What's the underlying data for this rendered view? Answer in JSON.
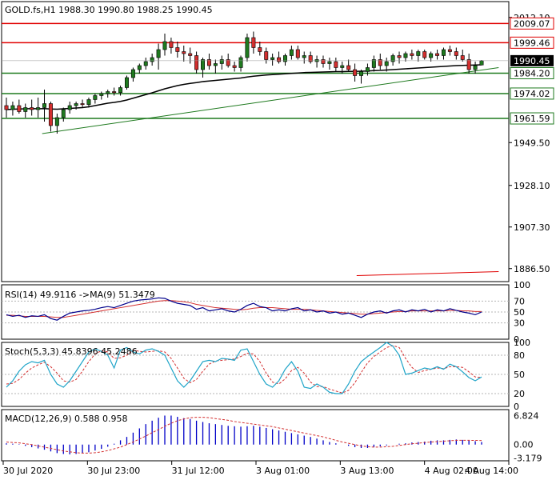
{
  "colors": {
    "frame": "#000000",
    "grid": "#b4b4b4",
    "bull": "#1f7a1f",
    "bear": "#d32f2f",
    "support_line": "#1f7a1f",
    "resistance_line": "#e00000",
    "ma_line": "#000000",
    "rsi_line": "#00008b",
    "rsi_ma": "#d32f2f",
    "stoch_main": "#1fa4c8",
    "stoch_signal": "#d32f2f",
    "macd_hist": "#0000c8",
    "macd_signal": "#d32f2f",
    "price_tag_bg": "#000000",
    "price_tag_text": "#ffffff",
    "label_bg": "#ffffff"
  },
  "chart_data": {
    "type": "candlestick",
    "header_text": "GOLD.fs,H1  1988.30 1990.80 1988.25 1990.45",
    "timeframe": "H1",
    "ohlc_last": {
      "open": 1988.3,
      "high": 1990.8,
      "low": 1988.25,
      "close": 1990.45
    },
    "current_price": "1990.45",
    "ylim": [
      1880.0,
      2020.0
    ],
    "y_ticks": [
      "2012.10",
      "1949.50",
      "1928.10",
      "1907.30",
      "1886.50"
    ],
    "x_tick_labels": [
      "30 Jul 2020",
      "30 Jul 23:00",
      "31 Jul 12:00",
      "3 Aug 01:00",
      "3 Aug 13:00",
      "4 Aug 02:00",
      "4 Aug 14:00"
    ],
    "horizontal_levels": [
      {
        "label": "2009.07",
        "value": 2009.07,
        "kind": "resistance"
      },
      {
        "label": "1999.46",
        "value": 1999.46,
        "kind": "resistance"
      },
      {
        "label": "1984.20",
        "value": 1984.2,
        "kind": "support"
      },
      {
        "label": "1974.02",
        "value": 1974.02,
        "kind": "support"
      },
      {
        "label": "1961.59",
        "value": 1961.59,
        "kind": "support"
      }
    ],
    "trendlines": [
      {
        "kind": "support",
        "from": [
          8,
          1954.0
        ],
        "to": [
          98,
          1987.0
        ]
      },
      {
        "kind": "resistance",
        "from": [
          70,
          1883.0
        ],
        "to": [
          98,
          1885.0
        ]
      }
    ],
    "candles": [
      {
        "o": 1968.0,
        "h": 1972.0,
        "l": 1962.0,
        "c": 1966.0
      },
      {
        "o": 1966.0,
        "h": 1970.0,
        "l": 1963.0,
        "c": 1968.0
      },
      {
        "o": 1968.0,
        "h": 1971.0,
        "l": 1964.0,
        "c": 1965.0
      },
      {
        "o": 1965.0,
        "h": 1969.0,
        "l": 1962.0,
        "c": 1967.0
      },
      {
        "o": 1967.0,
        "h": 1971.0,
        "l": 1963.0,
        "c": 1966.0
      },
      {
        "o": 1966.0,
        "h": 1972.0,
        "l": 1962.0,
        "c": 1967.0
      },
      {
        "o": 1967.0,
        "h": 1976.0,
        "l": 1960.0,
        "c": 1969.0
      },
      {
        "o": 1969.0,
        "h": 1970.0,
        "l": 1955.0,
        "c": 1958.0
      },
      {
        "o": 1958.0,
        "h": 1964.0,
        "l": 1954.0,
        "c": 1962.0
      },
      {
        "o": 1962.0,
        "h": 1967.0,
        "l": 1960.0,
        "c": 1966.0
      },
      {
        "o": 1966.0,
        "h": 1970.0,
        "l": 1964.0,
        "c": 1968.0
      },
      {
        "o": 1968.0,
        "h": 1970.0,
        "l": 1966.0,
        "c": 1969.0
      },
      {
        "o": 1969.0,
        "h": 1971.0,
        "l": 1967.0,
        "c": 1968.5
      },
      {
        "o": 1968.5,
        "h": 1972.0,
        "l": 1967.0,
        "c": 1971.0
      },
      {
        "o": 1971.0,
        "h": 1974.0,
        "l": 1969.0,
        "c": 1973.0
      },
      {
        "o": 1973.0,
        "h": 1975.0,
        "l": 1971.0,
        "c": 1974.0
      },
      {
        "o": 1974.0,
        "h": 1976.0,
        "l": 1972.0,
        "c": 1975.0
      },
      {
        "o": 1975.0,
        "h": 1977.0,
        "l": 1973.0,
        "c": 1974.5
      },
      {
        "o": 1974.5,
        "h": 1978.0,
        "l": 1973.0,
        "c": 1977.0
      },
      {
        "o": 1977.0,
        "h": 1983.0,
        "l": 1976.0,
        "c": 1982.0
      },
      {
        "o": 1982.0,
        "h": 1987.0,
        "l": 1980.0,
        "c": 1986.0
      },
      {
        "o": 1986.0,
        "h": 1989.0,
        "l": 1984.0,
        "c": 1988.0
      },
      {
        "o": 1988.0,
        "h": 1992.0,
        "l": 1986.0,
        "c": 1990.0
      },
      {
        "o": 1990.0,
        "h": 1994.0,
        "l": 1988.0,
        "c": 1992.0
      },
      {
        "o": 1992.0,
        "h": 1999.0,
        "l": 1986.0,
        "c": 1996.0
      },
      {
        "o": 1996.0,
        "h": 2004.0,
        "l": 1993.0,
        "c": 2000.0
      },
      {
        "o": 2000.0,
        "h": 2002.0,
        "l": 1994.0,
        "c": 1997.0
      },
      {
        "o": 1997.0,
        "h": 2000.0,
        "l": 1992.0,
        "c": 1995.0
      },
      {
        "o": 1995.0,
        "h": 1998.0,
        "l": 1990.0,
        "c": 1994.0
      },
      {
        "o": 1994.0,
        "h": 1997.0,
        "l": 1989.0,
        "c": 1993.0
      },
      {
        "o": 1993.0,
        "h": 1995.0,
        "l": 1984.0,
        "c": 1986.0
      },
      {
        "o": 1986.0,
        "h": 1992.0,
        "l": 1982.0,
        "c": 1991.0
      },
      {
        "o": 1991.0,
        "h": 1994.0,
        "l": 1986.0,
        "c": 1988.0
      },
      {
        "o": 1988.0,
        "h": 1991.0,
        "l": 1984.0,
        "c": 1989.0
      },
      {
        "o": 1989.0,
        "h": 1993.0,
        "l": 1986.0,
        "c": 1991.0
      },
      {
        "o": 1991.0,
        "h": 1994.0,
        "l": 1987.0,
        "c": 1988.0
      },
      {
        "o": 1988.0,
        "h": 1990.0,
        "l": 1985.0,
        "c": 1987.0
      },
      {
        "o": 1987.0,
        "h": 1993.0,
        "l": 1985.0,
        "c": 1992.0
      },
      {
        "o": 1992.0,
        "h": 2004.0,
        "l": 1990.0,
        "c": 2002.0
      },
      {
        "o": 2002.0,
        "h": 2005.0,
        "l": 1994.0,
        "c": 1997.0
      },
      {
        "o": 1997.0,
        "h": 2000.0,
        "l": 1993.0,
        "c": 1995.0
      },
      {
        "o": 1995.0,
        "h": 1997.0,
        "l": 1989.0,
        "c": 1991.0
      },
      {
        "o": 1991.0,
        "h": 1994.0,
        "l": 1988.0,
        "c": 1992.0
      },
      {
        "o": 1992.0,
        "h": 1995.0,
        "l": 1989.0,
        "c": 1990.0
      },
      {
        "o": 1990.0,
        "h": 1994.0,
        "l": 1988.0,
        "c": 1993.0
      },
      {
        "o": 1993.0,
        "h": 1998.0,
        "l": 1991.0,
        "c": 1996.0
      },
      {
        "o": 1996.0,
        "h": 1998.0,
        "l": 1991.0,
        "c": 1992.0
      },
      {
        "o": 1992.0,
        "h": 1995.0,
        "l": 1989.0,
        "c": 1993.0
      },
      {
        "o": 1993.0,
        "h": 1995.0,
        "l": 1989.0,
        "c": 1990.0
      },
      {
        "o": 1990.0,
        "h": 1993.0,
        "l": 1987.0,
        "c": 1991.0
      },
      {
        "o": 1991.0,
        "h": 1993.0,
        "l": 1987.0,
        "c": 1989.0
      },
      {
        "o": 1989.0,
        "h": 1992.0,
        "l": 1986.0,
        "c": 1990.0
      },
      {
        "o": 1990.0,
        "h": 1992.0,
        "l": 1985.0,
        "c": 1987.0
      },
      {
        "o": 1987.0,
        "h": 1990.0,
        "l": 1984.0,
        "c": 1988.0
      },
      {
        "o": 1988.0,
        "h": 1991.0,
        "l": 1985.0,
        "c": 1986.0
      },
      {
        "o": 1986.0,
        "h": 1989.0,
        "l": 1980.0,
        "c": 1983.0
      },
      {
        "o": 1983.0,
        "h": 1986.0,
        "l": 1979.0,
        "c": 1985.0
      },
      {
        "o": 1985.0,
        "h": 1989.0,
        "l": 1983.0,
        "c": 1987.0
      },
      {
        "o": 1987.0,
        "h": 1993.0,
        "l": 1985.0,
        "c": 1991.0
      },
      {
        "o": 1991.0,
        "h": 1994.0,
        "l": 1986.0,
        "c": 1988.0
      },
      {
        "o": 1988.0,
        "h": 1992.0,
        "l": 1985.0,
        "c": 1990.0
      },
      {
        "o": 1990.0,
        "h": 1994.0,
        "l": 1988.0,
        "c": 1993.0
      },
      {
        "o": 1993.0,
        "h": 1995.0,
        "l": 1989.0,
        "c": 1992.0
      },
      {
        "o": 1992.0,
        "h": 1995.0,
        "l": 1990.0,
        "c": 1994.0
      },
      {
        "o": 1994.0,
        "h": 1996.0,
        "l": 1991.0,
        "c": 1993.0
      },
      {
        "o": 1993.0,
        "h": 1996.0,
        "l": 1990.0,
        "c": 1995.0
      },
      {
        "o": 1995.0,
        "h": 1996.0,
        "l": 1991.0,
        "c": 1992.0
      },
      {
        "o": 1992.0,
        "h": 1995.0,
        "l": 1990.0,
        "c": 1994.0
      },
      {
        "o": 1994.0,
        "h": 1996.0,
        "l": 1991.0,
        "c": 1993.0
      },
      {
        "o": 1993.0,
        "h": 1997.0,
        "l": 1991.0,
        "c": 1996.0
      },
      {
        "o": 1996.0,
        "h": 1998.0,
        "l": 1993.0,
        "c": 1995.0
      },
      {
        "o": 1995.0,
        "h": 1997.0,
        "l": 1991.0,
        "c": 1993.0
      },
      {
        "o": 1993.0,
        "h": 1996.0,
        "l": 1990.0,
        "c": 1991.0
      },
      {
        "o": 1991.0,
        "h": 1994.0,
        "l": 1984.0,
        "c": 1986.0
      },
      {
        "o": 1986.0,
        "h": 1990.0,
        "l": 1984.0,
        "c": 1988.0
      },
      {
        "o": 1988.3,
        "h": 1990.8,
        "l": 1988.25,
        "c": 1990.45
      }
    ],
    "ma": [
      1966.0,
      1966.2,
      1966.3,
      1966.4,
      1966.5,
      1966.4,
      1966.5,
      1966.3,
      1966.2,
      1966.4,
      1966.6,
      1966.8,
      1967.0,
      1967.4,
      1968.0,
      1968.6,
      1969.2,
      1969.6,
      1970.1,
      1970.8,
      1971.7,
      1972.6,
      1973.5,
      1974.4,
      1975.4,
      1976.4,
      1977.2,
      1978.0,
      1978.6,
      1979.1,
      1979.5,
      1980.0,
      1980.3,
      1980.6,
      1980.9,
      1981.2,
      1981.5,
      1981.8,
      1982.3,
      1982.7,
      1983.0,
      1983.3,
      1983.5,
      1983.7,
      1983.9,
      1984.1,
      1984.3,
      1984.5,
      1984.6,
      1984.7,
      1984.8,
      1984.9,
      1985.0,
      1985.0,
      1985.1,
      1985.1,
      1985.2,
      1985.3,
      1985.5,
      1985.6,
      1985.8,
      1986.0,
      1986.2,
      1986.4,
      1986.6,
      1986.8,
      1987.0,
      1987.2,
      1987.4,
      1987.6,
      1987.8,
      1988.0,
      1988.1,
      1988.2,
      1988.3,
      1988.4
    ],
    "rsi": {
      "label": "RSI(14) 49.9116  ->MA(9) 51.3479",
      "ticks": [
        "100",
        "70",
        "50",
        "30",
        "0"
      ],
      "main": [
        45,
        42,
        44,
        40,
        43,
        42,
        45,
        38,
        35,
        42,
        48,
        50,
        52,
        53,
        55,
        58,
        60,
        58,
        62,
        66,
        70,
        72,
        73,
        74,
        76,
        75,
        70,
        66,
        64,
        62,
        55,
        58,
        52,
        54,
        56,
        52,
        50,
        55,
        62,
        66,
        60,
        58,
        52,
        54,
        52,
        56,
        58,
        52,
        54,
        50,
        52,
        48,
        50,
        46,
        48,
        44,
        40,
        46,
        50,
        52,
        48,
        52,
        54,
        50,
        54,
        52,
        55,
        50,
        54,
        52,
        56,
        53,
        50,
        48,
        45,
        50
      ],
      "ma": [
        44,
        44,
        43,
        42,
        42,
        42,
        42,
        41,
        40,
        40,
        42,
        44,
        46,
        48,
        50,
        52,
        54,
        56,
        58,
        60,
        62,
        64,
        66,
        68,
        70,
        71,
        71,
        70,
        69,
        67,
        64,
        62,
        60,
        58,
        57,
        56,
        55,
        54,
        55,
        57,
        58,
        58,
        58,
        57,
        56,
        55,
        55,
        55,
        54,
        53,
        52,
        51,
        50,
        49,
        48,
        47,
        46,
        46,
        47,
        48,
        49,
        50,
        51,
        51,
        52,
        52,
        52,
        52,
        52,
        52,
        53,
        53,
        52,
        52,
        51,
        51
      ]
    },
    "stoch": {
      "label": "Stoch(5,3,3) 45.8396 45.2486",
      "ticks": [
        "100",
        "80",
        "50",
        "20",
        "0"
      ],
      "main": [
        30,
        40,
        55,
        65,
        70,
        68,
        72,
        50,
        35,
        30,
        40,
        55,
        70,
        85,
        90,
        86,
        80,
        60,
        88,
        92,
        85,
        82,
        88,
        90,
        86,
        80,
        60,
        40,
        30,
        40,
        55,
        70,
        72,
        70,
        75,
        74,
        72,
        88,
        90,
        70,
        50,
        35,
        30,
        40,
        58,
        70,
        55,
        30,
        28,
        35,
        30,
        22,
        20,
        20,
        35,
        55,
        70,
        78,
        85,
        92,
        100,
        94,
        80,
        50,
        52,
        56,
        60,
        58,
        62,
        58,
        66,
        62,
        54,
        45,
        40,
        46
      ],
      "signal": [
        35,
        36,
        42,
        52,
        60,
        65,
        69,
        62,
        52,
        40,
        38,
        42,
        55,
        70,
        82,
        87,
        85,
        75,
        76,
        80,
        88,
        86,
        85,
        86,
        87,
        85,
        75,
        60,
        44,
        37,
        42,
        55,
        66,
        71,
        72,
        73,
        74,
        78,
        83,
        82,
        70,
        52,
        38,
        35,
        43,
        56,
        61,
        52,
        38,
        31,
        31,
        27,
        24,
        21,
        25,
        37,
        53,
        68,
        78,
        85,
        92,
        95,
        92,
        75,
        61,
        53,
        56,
        58,
        60,
        59,
        62,
        62,
        61,
        54,
        46,
        45
      ]
    },
    "macd": {
      "label": "MACD(12,26,9) 0.588 0.958",
      "ticks": [
        "6.824",
        "0.00",
        "-3.179"
      ],
      "hist": [
        0.3,
        0.2,
        0.1,
        -0.3,
        -0.6,
        -0.9,
        -1.2,
        -1.6,
        -2.0,
        -2.2,
        -2.3,
        -2.2,
        -2.0,
        -1.8,
        -1.4,
        -1.0,
        -0.5,
        0.2,
        1.0,
        1.8,
        2.8,
        3.8,
        4.8,
        5.6,
        6.3,
        6.8,
        6.8,
        6.5,
        6.2,
        6.0,
        5.6,
        5.3,
        5.0,
        4.8,
        4.6,
        4.4,
        4.3,
        4.2,
        4.3,
        4.4,
        4.2,
        3.9,
        3.6,
        3.3,
        3.0,
        2.7,
        2.4,
        2.1,
        1.8,
        1.4,
        1.0,
        0.6,
        0.3,
        0.0,
        -0.3,
        -0.6,
        -0.8,
        -0.8,
        -0.6,
        -0.4,
        -0.2,
        0.0,
        0.2,
        0.3,
        0.5,
        0.6,
        0.7,
        0.9,
        1.0,
        1.0,
        1.1,
        1.2,
        1.1,
        1.0,
        0.8,
        0.6
      ],
      "signal": [
        0.6,
        0.5,
        0.4,
        0.2,
        0.0,
        -0.3,
        -0.6,
        -0.9,
        -1.2,
        -1.5,
        -1.7,
        -1.9,
        -2.0,
        -2.0,
        -1.9,
        -1.7,
        -1.4,
        -1.0,
        -0.6,
        0.0,
        0.6,
        1.3,
        2.0,
        2.8,
        3.5,
        4.3,
        5.0,
        5.6,
        6.0,
        6.3,
        6.4,
        6.4,
        6.3,
        6.1,
        5.9,
        5.7,
        5.4,
        5.2,
        5.0,
        4.8,
        4.6,
        4.4,
        4.2,
        3.9,
        3.6,
        3.3,
        3.0,
        2.7,
        2.4,
        2.1,
        1.8,
        1.4,
        1.0,
        0.6,
        0.3,
        0.0,
        -0.3,
        -0.5,
        -0.6,
        -0.6,
        -0.5,
        -0.4,
        -0.2,
        0.0,
        0.2,
        0.3,
        0.5,
        0.6,
        0.7,
        0.8,
        0.9,
        1.0,
        1.0,
        1.0,
        0.98,
        0.96
      ]
    }
  }
}
